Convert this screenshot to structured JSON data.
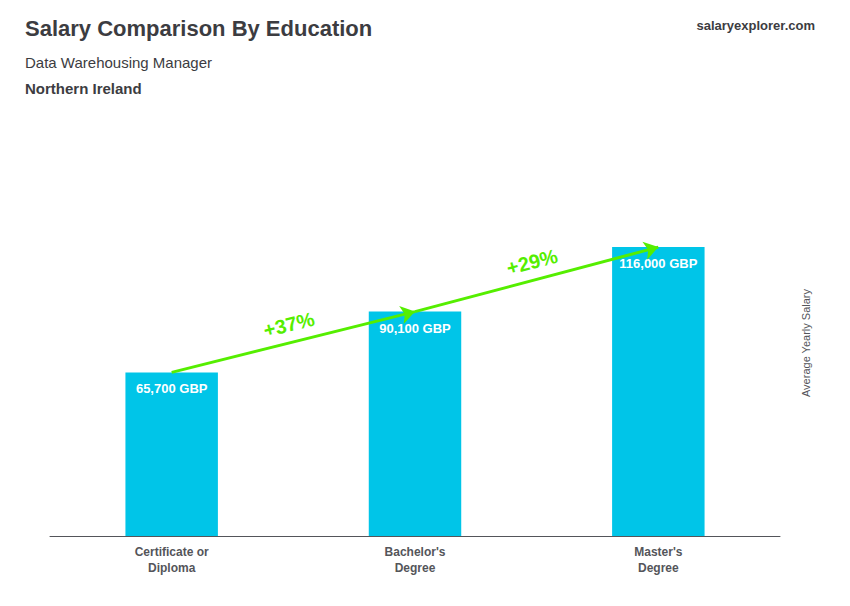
{
  "chart_data": {
    "type": "bar",
    "title": "Salary Comparison By Education",
    "subtitle": [
      "Data Warehousing Manager",
      "Northern Ireland"
    ],
    "ylabel": "Average Yearly Salary",
    "categories": [
      "Certificate or\nDiploma",
      "Bachelor's\nDegree",
      "Master's\nDegree"
    ],
    "values": [
      65700,
      90100,
      116000
    ],
    "value_labels": [
      "65,700 GBP",
      "90,100 GBP",
      "116,000 GBP"
    ],
    "data_labels": true,
    "color": "#00C5E8",
    "ylim": [
      0,
      155000
    ],
    "grid": false,
    "tick_labels": "x",
    "annotations": [
      {
        "text": "+37%",
        "color": "#55EE00"
      },
      {
        "text": "+29%",
        "color": "#55EE00"
      },
      {
        "text": "salaryexplorer.com"
      }
    ]
  }
}
